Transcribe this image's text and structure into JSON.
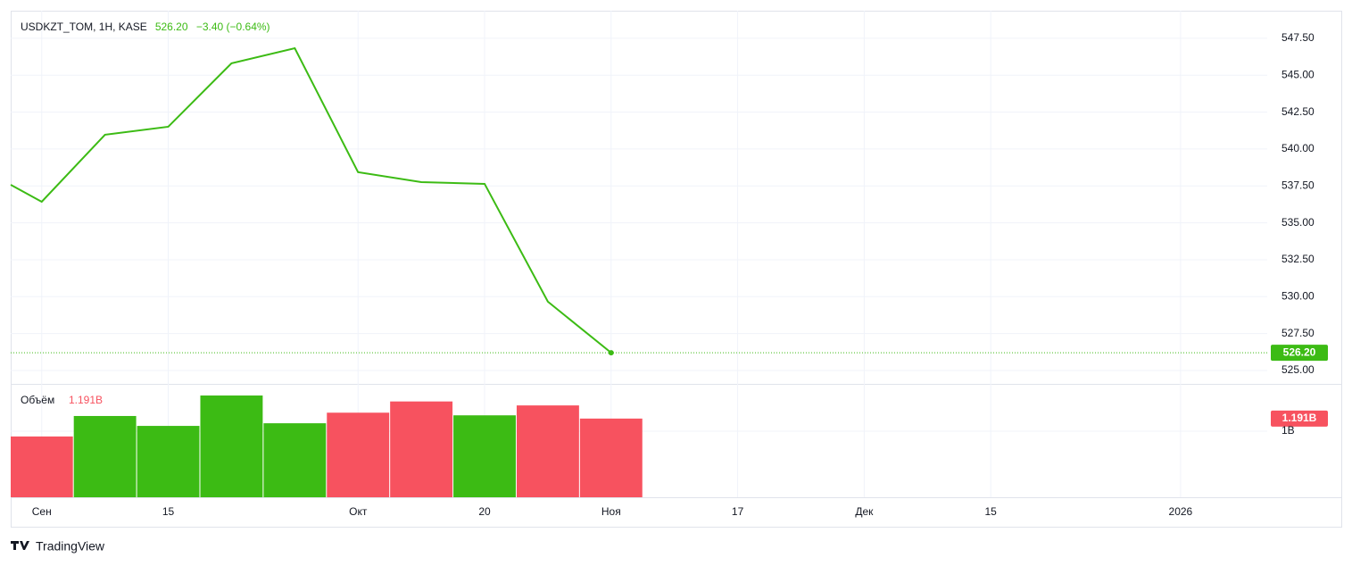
{
  "chart_data": [
    {
      "type": "line",
      "title": "USDKZT_TOM, 1H, KASE",
      "last_label": "526.20",
      "change": "−3.40 (−0.64%)",
      "color": "#3cbb14",
      "grid": true,
      "x": [
        -0.49,
        0,
        1,
        2,
        3,
        4,
        5,
        6,
        7,
        8,
        9
      ],
      "values": [
        537.58,
        536.43,
        540.97,
        541.51,
        545.81,
        546.83,
        538.43,
        537.76,
        537.64,
        529.66,
        526.2
      ],
      "xlim": [
        -0.49,
        19.37
      ],
      "xticks": [
        {
          "value": 0,
          "label": "Сен"
        },
        {
          "value": 2,
          "label": "15"
        },
        {
          "value": 5,
          "label": "Окт"
        },
        {
          "value": 7,
          "label": "20"
        },
        {
          "value": 9,
          "label": "Ноя"
        },
        {
          "value": 11,
          "label": "17"
        },
        {
          "value": 13,
          "label": "Дек"
        },
        {
          "value": 15,
          "label": "15"
        },
        {
          "value": 18,
          "label": "2026"
        }
      ],
      "ylim": [
        524.09,
        549.37
      ],
      "yticks": [
        {
          "value": 525,
          "label": "525.00"
        },
        {
          "value": 527.5,
          "label": "527.50"
        },
        {
          "value": 530,
          "label": "530.00"
        },
        {
          "value": 532.5,
          "label": "532.50"
        },
        {
          "value": 535,
          "label": "535.00"
        },
        {
          "value": 537.5,
          "label": "537.50"
        },
        {
          "value": 540,
          "label": "540.00"
        },
        {
          "value": 542.5,
          "label": "542.50"
        },
        {
          "value": 545,
          "label": "545.00"
        },
        {
          "value": 547.5,
          "label": "547.50"
        }
      ]
    },
    {
      "type": "bar",
      "legend_label": "Объём",
      "last_label": "1.191B",
      "x": [
        0,
        1,
        2,
        3,
        4,
        5,
        6,
        7,
        8,
        9
      ],
      "values": [
        0.92,
        1.23,
        1.08,
        1.54,
        1.12,
        1.28,
        1.45,
        1.24,
        1.39,
        1.191
      ],
      "colors": [
        "#f7525f",
        "#3cbb14",
        "#3cbb14",
        "#3cbb14",
        "#3cbb14",
        "#f7525f",
        "#f7525f",
        "#3cbb14",
        "#f7525f",
        "#f7525f"
      ],
      "ylim": [
        0,
        1.716
      ],
      "yticks": [
        {
          "value": 1,
          "label": "1B"
        }
      ]
    }
  ],
  "footer": {
    "brand": "TradingView"
  }
}
